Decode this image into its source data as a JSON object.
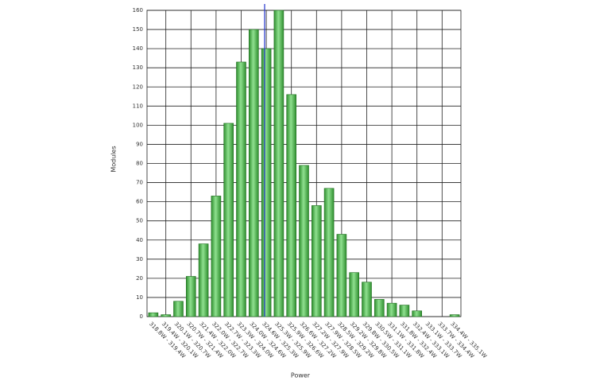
{
  "chart_data": {
    "type": "bar",
    "x_label": "Power",
    "y_label": "Modules",
    "categories": [
      "318.8W - 319.4W",
      "319.4W - 320.1W",
      "320.1W - 320.7W",
      "320.7W - 321.4W",
      "321.4W - 322.0W",
      "322.0W - 322.7W",
      "322.7W - 323.3W",
      "323.3W - 324.0W",
      "324.0W - 324.6W",
      "324.6W - 325.3W",
      "325.3W - 325.9W",
      "325.9W - 326.6W",
      "326.6W - 327.2W",
      "327.2W - 327.9W",
      "327.9W - 328.5W",
      "328.5W - 329.2W",
      "329.2W - 329.8W",
      "329.8W - 330.5W",
      "330.5W - 331.1W",
      "331.1W - 331.8W",
      "331.8W - 332.4W",
      "332.4W - 333.1W",
      "333.1W - 333.7W",
      "333.7W - 334.4W",
      "334.4W - 335.1W"
    ],
    "values": [
      2,
      1,
      8,
      21,
      38,
      63,
      101,
      133,
      150,
      140,
      160,
      116,
      79,
      58,
      67,
      43,
      23,
      18,
      9,
      7,
      6,
      3,
      0,
      0,
      1
    ],
    "color": "#4cbb4c",
    "ylim": [
      0,
      160
    ],
    "yticks": [
      0,
      10,
      20,
      30,
      40,
      50,
      60,
      70,
      80,
      90,
      100,
      110,
      120,
      130,
      140,
      150,
      160
    ],
    "grid": true
  }
}
